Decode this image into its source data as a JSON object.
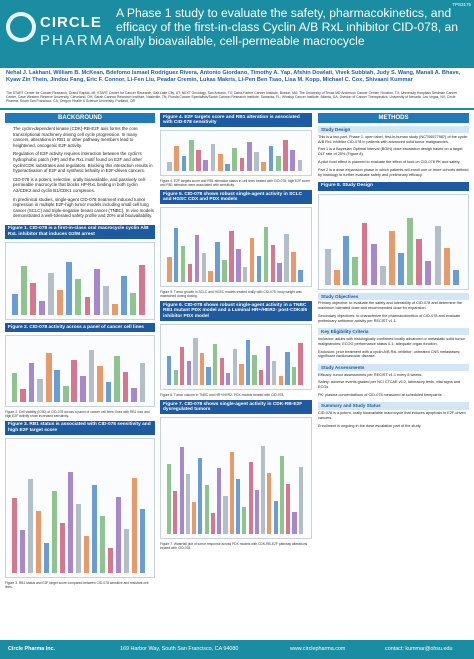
{
  "header": {
    "poster_id": "TPS3175",
    "logo_top": "CIRCLE",
    "logo_bottom": "PHARMA",
    "title": "A Phase 1 study to evaluate the safety, pharmacokinetics, and efficacy of the first-in-class Cyclin A/B RxL inhibitor CID-078, an orally bioavailable, cell-permeable macrocycle",
    "authors": "Nehal J. Lakhani, William B. McKean, Bdefomo Ismael Rodriguez Rivera, Antonio Giordano, Timothy A. Yap, Afshin Dowlati, Vivek Subbiah, Judy S. Wang, Manali A. Bhave, Kyaw Zin Thein, Jindou Fang, Eric F. Connor, Li-Fen Liu, Peadar Cremin, Lukas Makris, Li-Pen Ben Tsao, Lisa M. Kopp, Michael C. Cox, Shivaani Kummar",
    "affiliations": "The START Center for Cancer Research, Grand Rapids, MI; START Center for Cancer Research, Salt Lake City, UT; NEXT Oncology, San Antonio, TX; Dana-Farber Cancer Institute, Boston, MA; The University of Texas MD Anderson Cancer Center, Houston, TX; University Hospitals Seidman Cancer Center, Case Western Reserve University, Cleveland, OH; Sarah Cannon Research Institute, Nashville, TN; Florida Cancer Specialists/Sarah Cannon Research Institute, Sarasota, FL; Winship Cancer Institute, Atlanta, GA; Division of Cancer Therapeutics, University of Nevada, Las Vegas, NV; Circle Pharma, South San Francisco, CA; Oregon Health & Science University, Portland, OR"
  },
  "columns": [
    {
      "heading": "BACKGROUND",
      "blocks": [
        {
          "kind": "bullets",
          "items": [
            "The cyclin-dependent kinase (CDK)-RB-E2F axis forms the core transcriptional machinery driving cell cycle progression. In many cancers, alterations in RB1 or other pathway members lead to heightened, oncogenic E2F activity.",
            "Regulation of E2F activity requires interaction between the cyclin's hydrophobic patch (HP) and the RxL motif found on E2F and other cyclin/CDK substrates and regulators. Blocking this interaction results in hyperactivation of E2F and synthetic lethality in E2F-driven cancers.",
            "CID-078 is a potent, selective, orally bioavailable, and passively cell-permeable macrocycle that blocks HP-RxL binding in both cyclin A2/CDK2 and cyclin B1/CDK1 complexes.",
            "In preclinical studies, single-agent CID-078 treatment induced tumor regression in multiple E2F-high tumor models including small cell lung cancer (SCLC) and triple-negative breast cancer (TNBC). In vivo models demonstrated a well-tolerated safety profile and 20% oral bioavailability."
          ]
        },
        {
          "kind": "figure",
          "caption": "Figure 1. CID-078 is a first-in-class oral macrocycle cyclin A/B RxL inhibitor that induces G2/M arrest"
        },
        {
          "kind": "figure",
          "caption": "Figure 2. CID-078 activity across a panel of cancer cell lines",
          "note": "Figure 2. Cell viability (IC50) of CID-078 across a panel of cancer cell lines; lines with RB1 loss and high E2F activity show increased sensitivity."
        },
        {
          "kind": "figure",
          "caption": "Figure 3. RB1 status is associated with CID-078 sensitivity and high E2F target score",
          "note": "Figure 3. RB1 status and E2F target score compared between CID-078 sensitive and resistant cell lines."
        }
      ]
    },
    {
      "heading": "",
      "blocks": [
        {
          "kind": "figure",
          "caption": "Figure 4. E2F targets score and RB1 alteration is associated with CID-078 sensitivity",
          "note": "Figure 4. E2F targets score and RB1 alteration status in cell lines treated with CID-078; high E2F score and RB1 alteration were associated with sensitivity."
        },
        {
          "kind": "figure",
          "caption": "Figure 5. CID-078 shows robust single-agent activity in SCLC and HGSC CDX and PDX models",
          "note": "Figure 5. Tumor growth in SCLC and HGSC models treated orally with CID-078; body weight was maintained during dosing."
        },
        {
          "kind": "figure",
          "caption": "Figure 6. CID-078 shows robust single-agent activity in a TNBC RB1 mutant PDX model and a Luminal HR+/HER2- post-CDK4/6 inhibitor PDX model",
          "note": "Figure 6. Tumor volume in TNBC and HR+/HER2- PDX models treated with CID-078."
        },
        {
          "kind": "figure",
          "caption": "Figure 7. CID-078 shows single-agent activity in CDK-RB-E2F dysregulated tumors",
          "note": "Figure 7. Waterfall plot of tumor response across PDX models with CDK-RB-E2F pathway alterations treated with CID-078."
        }
      ]
    },
    {
      "heading": "METHODS",
      "blocks": [
        {
          "kind": "section",
          "heading": "Study Design",
          "paragraphs": [
            "This is a two-part, Phase 1, open label, first-in-human study (NCT06577987) of the cyclin A/B RxL inhibitor CID-078 in patients with advanced solid tumor malignancies.",
            "Part 1 is a Bayesian Optimal Interval (BOIN) dose escalation design based on a target DLT rate of 25% (Figure 8).",
            "A pilot food effect is planned to evaluate the effect of food on CID-078 PK and safety.",
            "Part 2 is a dose expansion phase in which patients will enroll one or more cohorts defined by histology to further evaluate safety and preliminary efficacy."
          ]
        },
        {
          "kind": "figure",
          "caption": "Figure 8. Study Design"
        },
        {
          "kind": "section",
          "heading": "Study Objectives",
          "paragraphs": [
            "Primary objective: to evaluate the safety and tolerability of CID-078 and determine the maximum tolerated dose and recommended dose for expansion.",
            "Secondary objectives: to characterize the pharmacokinetics of CID-078 and evaluate preliminary antitumor activity per RECIST v1.1."
          ]
        },
        {
          "kind": "section",
          "heading": "Key Eligibility Criteria",
          "paragraphs": [
            "Inclusion: adults with histologically confirmed locally advanced or metastatic solid tumor malignancies; ECOG performance status 0-1; adequate organ function.",
            "Exclusion: prior treatment with a cyclin A/B RxL inhibitor; untreated CNS metastases; significant cardiovascular disease."
          ]
        },
        {
          "kind": "section",
          "heading": "Study Assessments",
          "paragraphs": [
            "Efficacy: tumor assessments per RECIST v1.1 every 8 weeks.",
            "Safety: adverse events graded per NCI CTCAE v5.0, laboratory tests, vital signs and ECGs.",
            "PK: plasma concentrations of CID-078 measured at scheduled timepoints."
          ]
        },
        {
          "kind": "section",
          "heading": "Summary and Study Status",
          "paragraphs": [
            "CID-078 is a potent, orally bioavailable macrocycle that induces apoptosis in E2F-driven cancers.",
            "Enrollment is ongoing in the dose escalation part of the study."
          ]
        }
      ]
    }
  ],
  "footer": {
    "company": "Circle Pharma Inc.",
    "address": "169 Harbor Way, South San Francisco, CA 94080",
    "website": "www.circlepharma.com",
    "contact": "contact: kummar@ohsu.edu"
  }
}
